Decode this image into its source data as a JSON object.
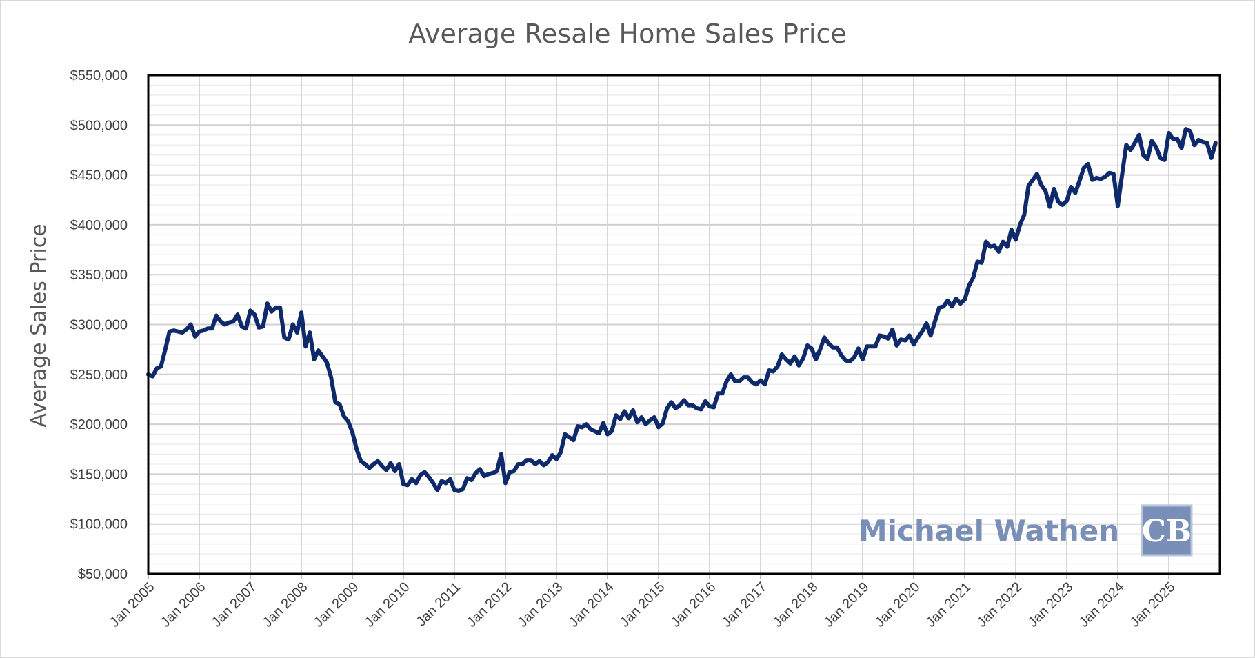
{
  "chart_data": {
    "type": "line",
    "title": "Average Resale Home Sales Price",
    "ylabel": "Average Sales Price",
    "xlabel": "",
    "ylim": [
      50000,
      550000
    ],
    "ytick_values": [
      50000,
      100000,
      150000,
      200000,
      250000,
      300000,
      350000,
      400000,
      450000,
      500000,
      550000
    ],
    "ytick_labels": [
      "$50,000",
      "$100,000",
      "$150,000",
      "$200,000",
      "$250,000",
      "$300,000",
      "$350,000",
      "$400,000",
      "$450,000",
      "$500,000",
      "$550,000"
    ],
    "xtick_labels": [
      "Jan 2005",
      "Jan 2006",
      "Jan 2007",
      "Jan 2008",
      "Jan 2009",
      "Jan 2010",
      "Jan 2011",
      "Jan 2012",
      "Jan 2013",
      "Jan 2014",
      "Jan 2015",
      "Jan 2016",
      "Jan 2017",
      "Jan 2018",
      "Jan 2019",
      "Jan 2020",
      "Jan 2021",
      "Jan 2022",
      "Jan 2023",
      "Jan 2024",
      "Jan 2025"
    ],
    "x_start": "Jan 2005",
    "x_end": "Dec 2025",
    "grid": true,
    "legend": "none",
    "line_color": "#0f2a6b",
    "series": [
      {
        "name": "",
        "values": [
          250000,
          248000,
          256000,
          258000,
          275000,
          293000,
          294000,
          293000,
          292000,
          295000,
          300000,
          288000,
          293000,
          294000,
          296000,
          296000,
          309000,
          303000,
          300000,
          302000,
          303000,
          310000,
          298000,
          296000,
          314000,
          310000,
          297000,
          298000,
          321000,
          313000,
          317000,
          317000,
          287000,
          285000,
          300000,
          292000,
          312000,
          278000,
          292000,
          265000,
          274000,
          268000,
          262000,
          247000,
          222000,
          220000,
          208000,
          203000,
          192000,
          175000,
          163000,
          160000,
          156000,
          160000,
          163000,
          158000,
          154000,
          161000,
          153000,
          160000,
          140000,
          139000,
          145000,
          141000,
          149000,
          152000,
          147000,
          141000,
          134000,
          143000,
          141000,
          145000,
          134000,
          133000,
          135000,
          146000,
          144000,
          151000,
          155000,
          148000,
          150000,
          151000,
          153000,
          170000,
          141000,
          152000,
          153000,
          160000,
          160000,
          164000,
          164000,
          160000,
          163000,
          159000,
          162000,
          169000,
          165000,
          172000,
          190000,
          187000,
          184000,
          198000,
          197000,
          200000,
          195000,
          193000,
          191000,
          201000,
          190000,
          193000,
          209000,
          205000,
          213000,
          206000,
          214000,
          202000,
          207000,
          200000,
          204000,
          207000,
          197000,
          201000,
          216000,
          222000,
          216000,
          219000,
          224000,
          219000,
          219000,
          216000,
          215000,
          223000,
          218000,
          217000,
          231000,
          231000,
          243000,
          250000,
          243000,
          243000,
          247000,
          247000,
          242000,
          240000,
          244000,
          240000,
          254000,
          253000,
          258000,
          270000,
          265000,
          261000,
          268000,
          259000,
          266000,
          279000,
          276000,
          265000,
          275000,
          287000,
          281000,
          277000,
          277000,
          269000,
          264000,
          263000,
          267000,
          276000,
          265000,
          278000,
          278000,
          278000,
          289000,
          288000,
          286000,
          295000,
          279000,
          285000,
          284000,
          289000,
          280000,
          287000,
          293000,
          301000,
          289000,
          303000,
          317000,
          318000,
          324000,
          318000,
          326000,
          321000,
          325000,
          339000,
          347000,
          363000,
          362000,
          383000,
          378000,
          379000,
          373000,
          383000,
          378000,
          395000,
          385000,
          400000,
          410000,
          439000,
          445000,
          451000,
          440000,
          434000,
          418000,
          436000,
          423000,
          420000,
          424000,
          438000,
          432000,
          444000,
          457000,
          461000,
          445000,
          447000,
          446000,
          448000,
          452000,
          451000,
          419000,
          450000,
          480000,
          475000,
          482000,
          490000,
          470000,
          466000,
          484000,
          478000,
          467000,
          465000,
          492000,
          486000,
          486000,
          477000,
          496000,
          494000,
          480000,
          485000,
          483000,
          482000,
          467000,
          482000
        ]
      }
    ]
  },
  "watermark": {
    "text": "Michael Wathen",
    "logo_text": "CB",
    "text_color": "#7a8fb8",
    "logo_color": "#7a8fb8"
  }
}
